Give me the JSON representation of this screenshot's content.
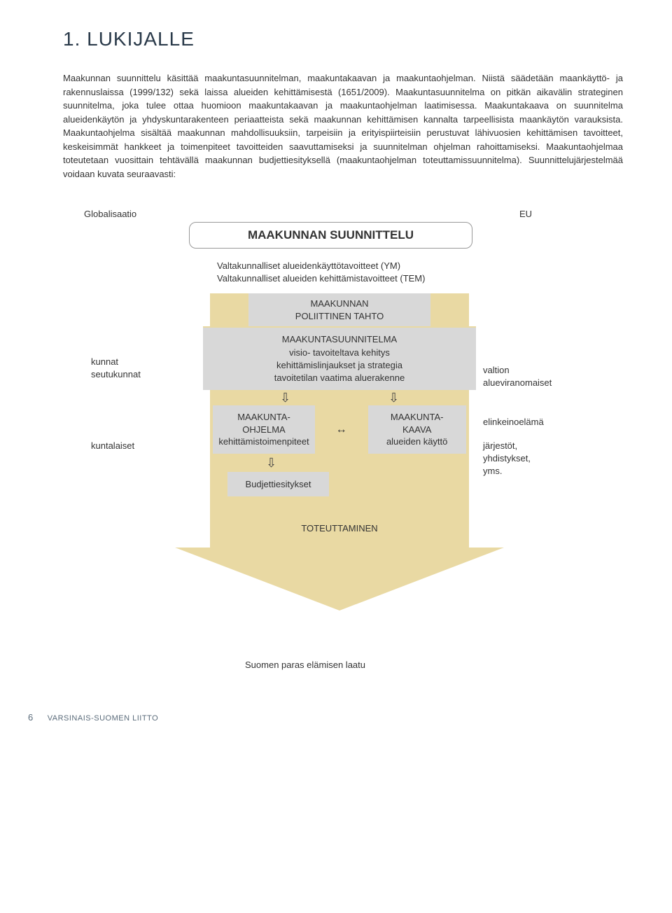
{
  "heading": "1. LUKIJALLE",
  "body_text": "Maakunnan suunnittelu käsittää maakuntasuunnitelman, maakuntakaavan ja maakuntaohjelman. Niistä säädetään maankäyttö- ja rakennuslaissa (1999/132) sekä laissa alueiden kehittämisestä (1651/2009). Maakuntasuunnitelma on pitkän aikavälin strateginen suunnitelma, joka tulee ottaa huomioon maakuntakaavan ja maakuntaohjelman laatimisessa. Maakuntakaava on suunnitelma alueidenkäytön ja yhdyskuntarakenteen periaatteista sekä maakunnan kehittämisen kannalta tarpeellisista maankäytön varauksista. Maakuntaohjelma sisältää maakunnan mahdollisuuksiin, tarpeisiin ja erityispiirteisiin perustuvat lähivuosien kehittämisen tavoitteet, keskeisimmät hankkeet ja toimenpiteet tavoitteiden saavuttamiseksi ja suunnitelman ohjelman rahoittamiseksi. Maakuntaohjelmaa toteutetaan vuosittain tehtävällä maakunnan budjettiesityksellä (maakuntaohjelman toteuttamissuunnitelma). Suunnittelujärjestelmää voidaan kuvata seuraavasti:",
  "diagram": {
    "type": "flowchart",
    "palette": {
      "arrow_fill": "#e9d9a3",
      "box_fill": "#d8d8d8",
      "border": "#999999",
      "text": "#333333"
    },
    "top_left_label": "Globalisaatio",
    "top_right_label": "EU",
    "title_box": "MAAKUNNAN SUUNNITTELU",
    "subhead_line1": "Valtakunnalliset alueidenkäyttötavoitteet (YM)",
    "subhead_line2": "Valtakunnalliset alueiden kehittämistavoitteet (TEM)",
    "box_poliittinen_l1": "MAAKUNNAN",
    "box_poliittinen_l2": "POLIITTINEN TAHTO",
    "box_suunnitelma_l1": "MAAKUNTASUUNNITELMA",
    "box_suunnitelma_l2": "visio- tavoiteltava kehitys",
    "box_suunnitelma_l3": "kehittämislinjaukset ja strategia",
    "box_suunnitelma_l4": "tavoitetilan vaatima aluerakenne",
    "box_ohjelma_l1": "MAAKUNTA-",
    "box_ohjelma_l2": "OHJELMA",
    "box_ohjelma_l3": "kehittämistoimenpiteet",
    "box_kaava_l1": "MAAKUNTA-",
    "box_kaava_l2": "KAAVA",
    "box_kaava_l3": "alueiden käyttö",
    "box_budjetti": "Budjettiesitykset",
    "toteuttaminen": "TOTEUTTAMINEN",
    "left_label_1a": "kunnat",
    "left_label_1b": "seutukunnat",
    "left_label_2": "kuntalaiset",
    "right_label_1a": "valtion",
    "right_label_1b": "alueviranomaiset",
    "right_label_mid": "elinkeinoelämä",
    "right_label_2a": "järjestöt,",
    "right_label_2b": "yhdistykset, yms.",
    "bottom_caption": "Suomen paras elämisen laatu"
  },
  "footer": {
    "page_number": "6",
    "org": "VARSINAIS-SUOMEN LIITTO"
  }
}
